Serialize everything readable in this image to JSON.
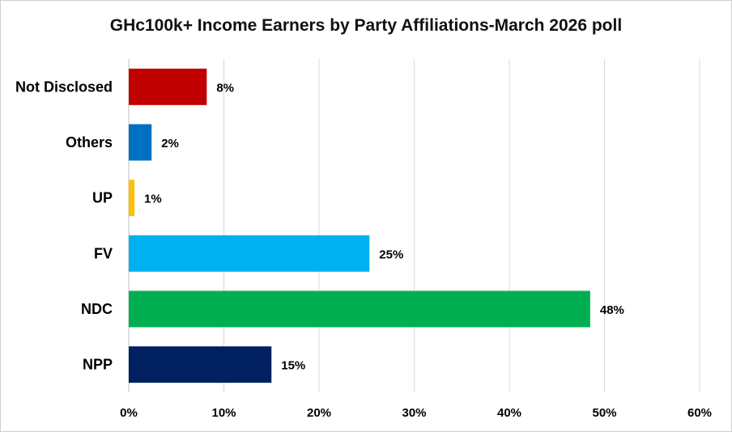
{
  "chart_data": {
    "type": "bar",
    "orientation": "horizontal",
    "title": "GHc100k+ Income Earners by Party Affiliations-March 2026 poll",
    "categories": [
      "Not Disclosed",
      "Others",
      "UP",
      "FV",
      "NDC",
      "NPP"
    ],
    "values": [
      8.2,
      2.4,
      0.6,
      25.3,
      48.5,
      15.0
    ],
    "data_labels": [
      "8%",
      "2%",
      "1%",
      "25%",
      "48%",
      "15%"
    ],
    "colors": [
      "#c00000",
      "#0070c0",
      "#ffc000",
      "#00b0f0",
      "#00b050",
      "#002060"
    ],
    "xlim": [
      0,
      60
    ],
    "xticks": [
      0,
      10,
      20,
      30,
      40,
      50,
      60
    ],
    "xtick_labels": [
      "0%",
      "10%",
      "20%",
      "30%",
      "40%",
      "50%",
      "60%"
    ],
    "grid": true,
    "legend": "none"
  }
}
